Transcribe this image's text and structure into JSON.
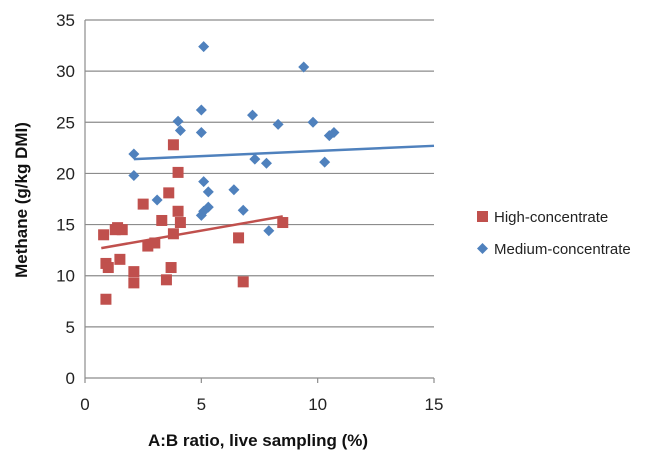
{
  "chart_data": {
    "type": "scatter",
    "title": "",
    "xlabel": "A:B ratio, live sampling (%)",
    "ylabel": "Methane (g/kg DMI)",
    "xlim": [
      0,
      15
    ],
    "ylim": [
      0,
      35
    ],
    "xticks": [
      0,
      5,
      10,
      15
    ],
    "yticks": [
      0,
      5,
      10,
      15,
      20,
      25,
      30,
      35
    ],
    "grid": "horizontal",
    "legend": "right",
    "series": [
      {
        "name": "High-concentrate",
        "color": "#c0504d",
        "marker": "square",
        "points": [
          [
            0.8,
            14.0
          ],
          [
            0.9,
            11.2
          ],
          [
            1.0,
            10.8
          ],
          [
            0.9,
            7.7
          ],
          [
            1.3,
            14.5
          ],
          [
            1.4,
            14.7
          ],
          [
            1.6,
            14.5
          ],
          [
            1.5,
            11.6
          ],
          [
            2.1,
            10.4
          ],
          [
            2.1,
            9.3
          ],
          [
            2.5,
            17.0
          ],
          [
            2.7,
            12.9
          ],
          [
            3.0,
            13.2
          ],
          [
            3.3,
            15.4
          ],
          [
            3.5,
            9.6
          ],
          [
            3.6,
            18.1
          ],
          [
            3.7,
            10.8
          ],
          [
            3.8,
            14.1
          ],
          [
            3.8,
            22.8
          ],
          [
            4.0,
            20.1
          ],
          [
            4.0,
            16.3
          ],
          [
            4.1,
            15.2
          ],
          [
            6.6,
            13.7
          ],
          [
            6.8,
            9.4
          ],
          [
            8.5,
            15.2
          ]
        ],
        "trendline": [
          [
            0.7,
            12.7
          ],
          [
            8.5,
            15.8
          ]
        ]
      },
      {
        "name": "Medium-concentrate",
        "color": "#4f81bd",
        "marker": "diamond",
        "points": [
          [
            2.1,
            21.9
          ],
          [
            2.1,
            19.8
          ],
          [
            3.1,
            17.4
          ],
          [
            4.0,
            25.1
          ],
          [
            4.1,
            24.2
          ],
          [
            5.0,
            26.2
          ],
          [
            5.0,
            24.0
          ],
          [
            5.1,
            32.4
          ],
          [
            5.1,
            19.2
          ],
          [
            5.3,
            18.2
          ],
          [
            5.1,
            16.3
          ],
          [
            5.0,
            15.9
          ],
          [
            5.3,
            16.7
          ],
          [
            6.4,
            18.4
          ],
          [
            6.8,
            16.4
          ],
          [
            7.2,
            25.7
          ],
          [
            7.3,
            21.4
          ],
          [
            7.8,
            21.0
          ],
          [
            7.9,
            14.4
          ],
          [
            8.3,
            24.8
          ],
          [
            9.4,
            30.4
          ],
          [
            9.8,
            25.0
          ],
          [
            10.3,
            21.1
          ],
          [
            10.5,
            23.7
          ],
          [
            10.7,
            24.0
          ]
        ],
        "trendline": [
          [
            2.1,
            21.4
          ],
          [
            15,
            22.7
          ]
        ]
      }
    ]
  }
}
